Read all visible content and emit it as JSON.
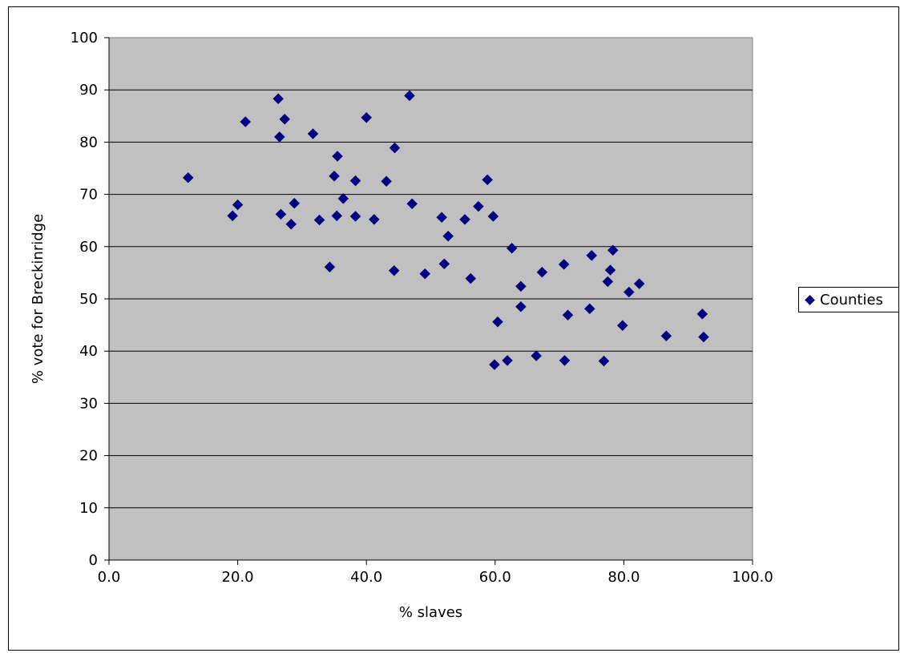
{
  "chart_data": {
    "type": "scatter",
    "xlabel": "% slaves",
    "ylabel": "% vote for Breckinridge",
    "xlim": [
      0,
      100
    ],
    "ylim": [
      0,
      100
    ],
    "x_ticks": [
      "0.0",
      "20.0",
      "40.0",
      "60.0",
      "80.0",
      "100.0"
    ],
    "y_ticks": [
      "0",
      "10",
      "20",
      "30",
      "40",
      "50",
      "60",
      "70",
      "80",
      "90",
      "100"
    ],
    "grid": "horizontal",
    "plot_background": "#C0C0C0",
    "legend_position": "right",
    "series": [
      {
        "name": "Counties",
        "color": "#000080",
        "marker": "diamond",
        "points": [
          [
            12.3,
            73.2
          ],
          [
            19.2,
            65.9
          ],
          [
            20.0,
            68.0
          ],
          [
            21.2,
            83.9
          ],
          [
            26.3,
            88.3
          ],
          [
            26.5,
            81.0
          ],
          [
            26.7,
            66.2
          ],
          [
            27.3,
            84.4
          ],
          [
            28.3,
            64.3
          ],
          [
            28.8,
            68.3
          ],
          [
            31.7,
            81.6
          ],
          [
            32.7,
            65.1
          ],
          [
            34.3,
            56.1
          ],
          [
            35.0,
            73.5
          ],
          [
            35.4,
            65.9
          ],
          [
            35.5,
            77.3
          ],
          [
            36.4,
            69.2
          ],
          [
            38.3,
            72.6
          ],
          [
            38.3,
            65.8
          ],
          [
            40.0,
            84.7
          ],
          [
            41.2,
            65.2
          ],
          [
            43.1,
            72.5
          ],
          [
            44.3,
            55.4
          ],
          [
            44.4,
            78.9
          ],
          [
            46.7,
            88.9
          ],
          [
            47.1,
            68.2
          ],
          [
            49.1,
            54.8
          ],
          [
            51.7,
            65.6
          ],
          [
            52.1,
            56.7
          ],
          [
            52.7,
            62.0
          ],
          [
            55.3,
            65.2
          ],
          [
            56.2,
            53.9
          ],
          [
            57.4,
            67.7
          ],
          [
            58.8,
            72.8
          ],
          [
            59.7,
            65.8
          ],
          [
            59.9,
            37.4
          ],
          [
            60.4,
            45.6
          ],
          [
            61.9,
            38.2
          ],
          [
            62.6,
            59.7
          ],
          [
            64.0,
            52.4
          ],
          [
            64.0,
            48.5
          ],
          [
            66.4,
            39.1
          ],
          [
            67.3,
            55.1
          ],
          [
            70.7,
            56.6
          ],
          [
            70.8,
            38.2
          ],
          [
            71.3,
            46.9
          ],
          [
            74.7,
            48.1
          ],
          [
            75.0,
            58.3
          ],
          [
            76.9,
            38.1
          ],
          [
            77.5,
            53.3
          ],
          [
            77.9,
            55.5
          ],
          [
            78.3,
            59.3
          ],
          [
            79.8,
            44.9
          ],
          [
            80.8,
            51.3
          ],
          [
            82.4,
            52.9
          ],
          [
            86.6,
            42.9
          ],
          [
            92.2,
            47.1
          ],
          [
            92.4,
            42.7
          ]
        ]
      }
    ]
  }
}
